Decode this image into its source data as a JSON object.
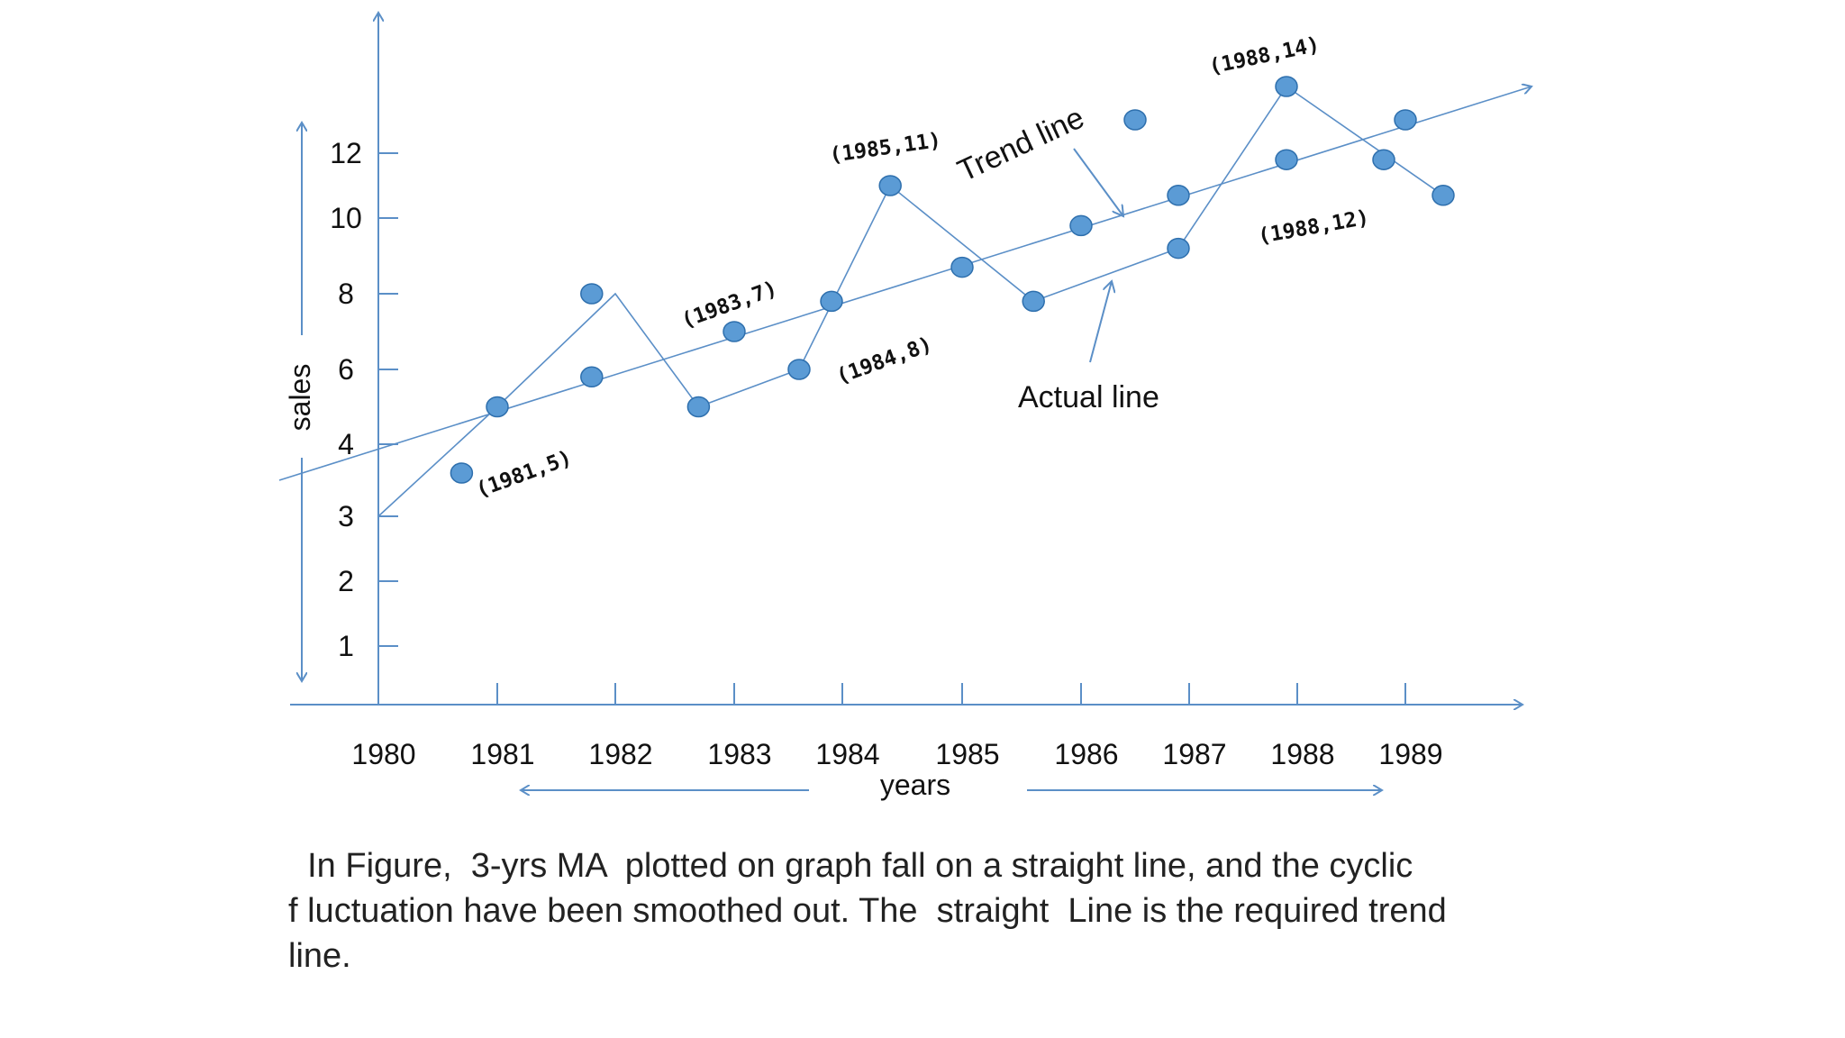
{
  "chart_data": {
    "type": "line",
    "xlabel": "years",
    "ylabel": "sales",
    "x_ticks": [
      "1980",
      "1981",
      "1982",
      "1983",
      "1984",
      "1985",
      "1986",
      "1987",
      "1988",
      "1989"
    ],
    "y_ticks": [
      "1",
      "2",
      "3",
      "4",
      "6",
      "8",
      "10",
      "12"
    ],
    "series": [
      {
        "role": "actual",
        "points": [
          {
            "x": 1980,
            "y": 3
          },
          {
            "x": 1981,
            "y": 5
          },
          {
            "x": 1982,
            "y": 8
          },
          {
            "x": 1982.7,
            "y": 5
          },
          {
            "x": 1983.6,
            "y": 6
          },
          {
            "x": 1984.4,
            "y": 11
          },
          {
            "x": 1985.6,
            "y": 7.8
          },
          {
            "x": 1986.9,
            "y": 9.2
          },
          {
            "x": 1987.9,
            "y": 14
          },
          {
            "x": 1989.3,
            "y": 10.7
          }
        ]
      },
      {
        "role": "trend",
        "points": [
          {
            "x": 1979.2,
            "y": 3.5
          },
          {
            "x": 1990.0,
            "y": 14.0
          }
        ]
      }
    ],
    "markers": [
      {
        "x": 1980.7,
        "y": 3.6
      },
      {
        "x": 1981.0,
        "y": 5.0
      },
      {
        "x": 1981.8,
        "y": 8.0
      },
      {
        "x": 1981.8,
        "y": 5.8
      },
      {
        "x": 1982.7,
        "y": 5.0
      },
      {
        "x": 1983.0,
        "y": 7.0
      },
      {
        "x": 1983.6,
        "y": 6.0
      },
      {
        "x": 1983.9,
        "y": 7.8
      },
      {
        "x": 1984.4,
        "y": 11.0
      },
      {
        "x": 1985.0,
        "y": 8.7
      },
      {
        "x": 1985.6,
        "y": 7.8
      },
      {
        "x": 1986.0,
        "y": 9.8
      },
      {
        "x": 1986.5,
        "y": 13.0
      },
      {
        "x": 1986.9,
        "y": 9.2
      },
      {
        "x": 1986.9,
        "y": 10.7
      },
      {
        "x": 1987.9,
        "y": 14.0
      },
      {
        "x": 1987.9,
        "y": 11.8
      },
      {
        "x": 1988.8,
        "y": 11.8
      },
      {
        "x": 1989.0,
        "y": 13.0
      },
      {
        "x": 1989.3,
        "y": 10.7
      }
    ],
    "annotations": [
      "(1981,5)",
      "(1983,7)",
      "(1984,8)",
      "(1985,11)",
      "(1988,14)",
      "(1988,12)"
    ],
    "callouts": {
      "trend": "Trend line",
      "actual": "Actual line"
    },
    "colors": {
      "line": "#5b8fc7",
      "marker_fill": "#5b9bd5",
      "marker_stroke": "#2e6fad"
    }
  },
  "caption": {
    "line1": "  In Figure,  3-yrs MA  plotted on graph fall on a straight line, and the cyclic",
    "line2": "f luctuation have been smoothed out. The  straight  Line is the required trend",
    "line3": "line."
  }
}
